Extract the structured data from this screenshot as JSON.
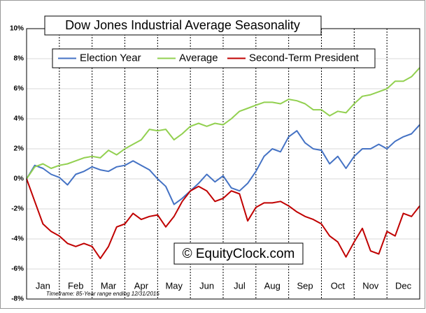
{
  "chart_data": {
    "type": "line",
    "title": "Dow Jones Industrial Average Seasonality",
    "watermark": "© EquityClock.com",
    "footnote": "Timeframe: 85-Year range ending 12/31/2015",
    "legend": "top",
    "grid": true,
    "xlim": [
      0,
      12
    ],
    "xticks": [
      {
        "value": 0.5,
        "label": "Jan"
      },
      {
        "value": 1.5,
        "label": "Feb"
      },
      {
        "value": 2.5,
        "label": "Mar"
      },
      {
        "value": 3.5,
        "label": "Apr"
      },
      {
        "value": 4.5,
        "label": "May"
      },
      {
        "value": 5.5,
        "label": "Jun"
      },
      {
        "value": 6.5,
        "label": "Jul"
      },
      {
        "value": 7.5,
        "label": "Aug"
      },
      {
        "value": 8.5,
        "label": "Sep"
      },
      {
        "value": 9.5,
        "label": "Oct"
      },
      {
        "value": 10.5,
        "label": "Nov"
      },
      {
        "value": 11.5,
        "label": "Dec"
      }
    ],
    "ylim": [
      -8,
      10
    ],
    "yticks": [
      {
        "value": -8,
        "label": "-8%"
      },
      {
        "value": -6,
        "label": "-6%"
      },
      {
        "value": -4,
        "label": "-4%"
      },
      {
        "value": -2,
        "label": "-2%"
      },
      {
        "value": 0,
        "label": "0%"
      },
      {
        "value": 2,
        "label": "2%"
      },
      {
        "value": 4,
        "label": "4%"
      },
      {
        "value": 6,
        "label": "6%"
      },
      {
        "value": 8,
        "label": "8%"
      },
      {
        "value": 10,
        "label": "10%"
      }
    ],
    "x": [
      0,
      0.25,
      0.5,
      0.75,
      1,
      1.25,
      1.5,
      1.75,
      2,
      2.25,
      2.5,
      2.75,
      3,
      3.25,
      3.5,
      3.75,
      4,
      4.25,
      4.5,
      4.75,
      5,
      5.25,
      5.5,
      5.75,
      6,
      6.25,
      6.5,
      6.75,
      7,
      7.25,
      7.5,
      7.75,
      8,
      8.25,
      8.5,
      8.75,
      9,
      9.25,
      9.5,
      9.75,
      10,
      10.25,
      10.5,
      10.75,
      11,
      11.25,
      11.5,
      11.75,
      12
    ],
    "series": [
      {
        "name": "Election Year",
        "color": "#4472c4",
        "values": [
          0,
          0.9,
          0.7,
          0.3,
          0.1,
          -0.4,
          0.3,
          0.5,
          0.8,
          0.6,
          0.5,
          0.8,
          0.9,
          1.2,
          0.9,
          0.6,
          0,
          -0.5,
          -1.7,
          -1.3,
          -0.8,
          -0.3,
          0.3,
          -0.2,
          0.2,
          -0.6,
          -0.8,
          -0.3,
          0.5,
          1.5,
          2.0,
          1.8,
          2.8,
          3.2,
          2.4,
          2.0,
          1.9,
          1.0,
          1.5,
          0.7,
          1.5,
          2.0,
          2.0,
          2.3,
          2.0,
          2.5,
          2.8,
          3.0,
          3.6
        ]
      },
      {
        "name": "Average",
        "color": "#92d050",
        "values": [
          0,
          0.8,
          1.0,
          0.7,
          0.9,
          1.0,
          1.2,
          1.4,
          1.5,
          1.4,
          1.9,
          1.6,
          2.0,
          2.3,
          2.6,
          3.3,
          3.2,
          3.3,
          2.6,
          3.0,
          3.5,
          3.7,
          3.5,
          3.7,
          3.6,
          4.0,
          4.5,
          4.7,
          4.9,
          5.1,
          5.1,
          5.0,
          5.3,
          5.2,
          5.0,
          4.6,
          4.6,
          4.2,
          4.5,
          4.4,
          5.0,
          5.5,
          5.6,
          5.8,
          6.0,
          6.5,
          6.5,
          6.8,
          7.4
        ]
      },
      {
        "name": "Second-Term President",
        "color": "#c00000",
        "values": [
          0,
          -1.5,
          -3.0,
          -3.5,
          -3.8,
          -4.3,
          -4.5,
          -4.3,
          -4.5,
          -5.3,
          -4.5,
          -3.2,
          -3.0,
          -2.3,
          -2.7,
          -2.5,
          -2.4,
          -3.2,
          -2.5,
          -1.5,
          -0.8,
          -0.5,
          -0.8,
          -1.5,
          -1.3,
          -0.8,
          -1.0,
          -2.8,
          -1.9,
          -1.6,
          -1.6,
          -1.5,
          -1.8,
          -2.2,
          -2.5,
          -2.7,
          -3.0,
          -3.8,
          -4.2,
          -5.2,
          -4.2,
          -3.3,
          -4.8,
          -5.0,
          -3.5,
          -3.8,
          -2.3,
          -2.5,
          -1.8
        ]
      }
    ]
  }
}
